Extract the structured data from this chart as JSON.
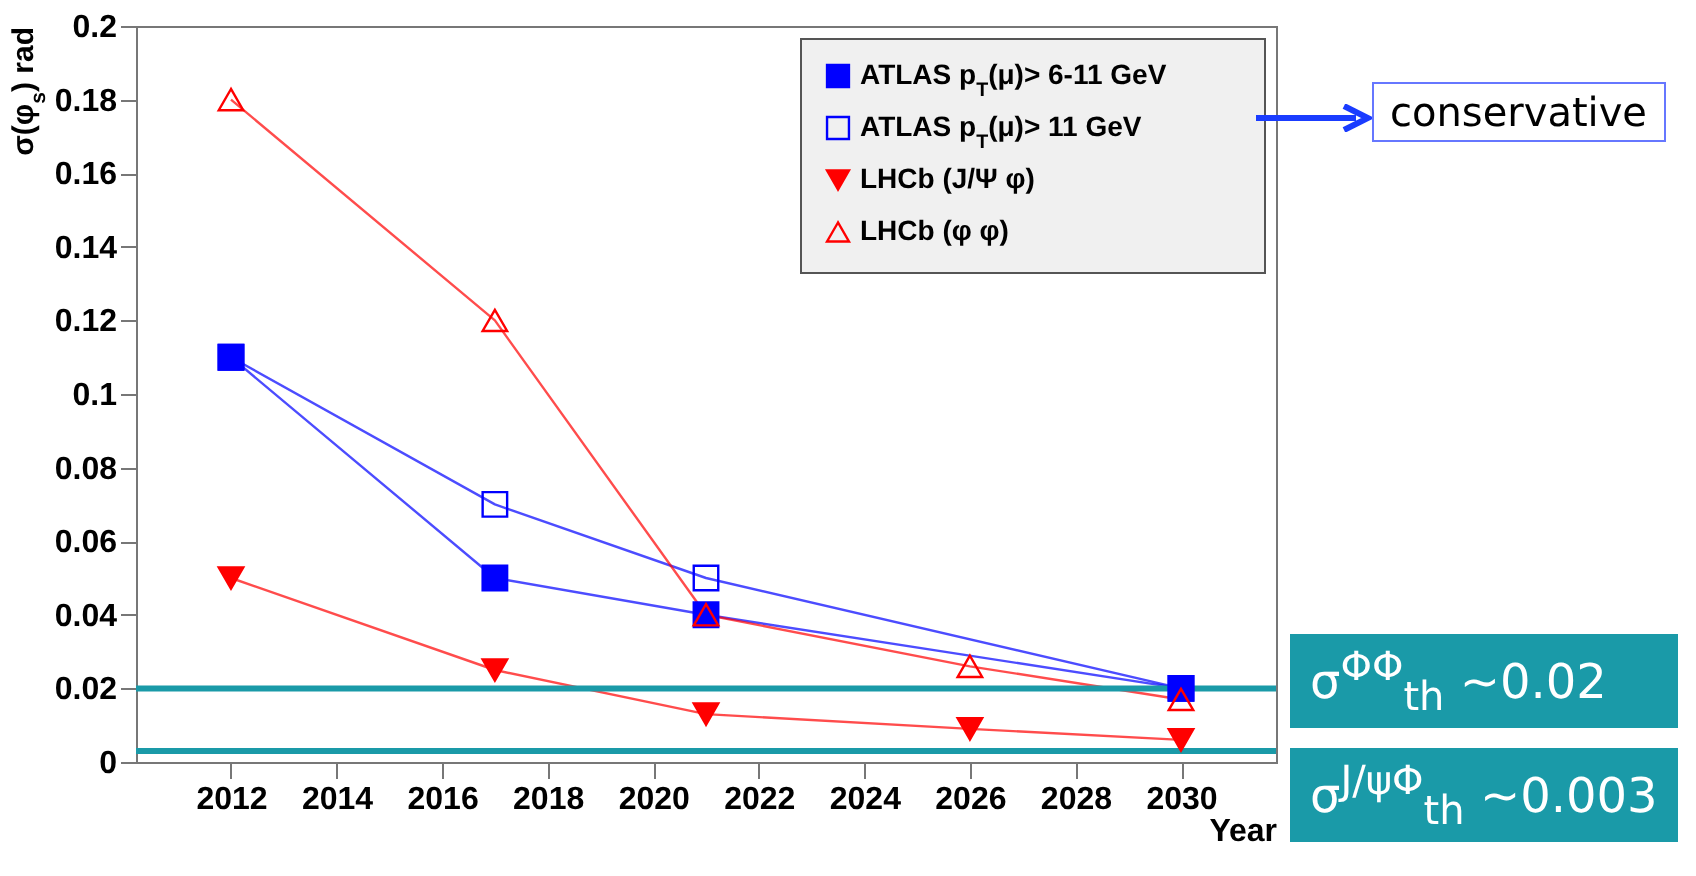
{
  "chart_data": {
    "type": "line",
    "xlabel": "Year",
    "ylabel": "σ(φ$_{s}$) rad",
    "x": [
      2012,
      2017,
      2021,
      2030
    ],
    "series": [
      {
        "name": "ATLAS p$_{T}$(μ)> 6-11 GeV",
        "color": "#0000ff",
        "marker": "square",
        "values": [
          0.11,
          0.05,
          0.04,
          0.02
        ]
      },
      {
        "name": "ATLAS p$_{T}$(μ)> 11 GeV",
        "color": "#0000ff",
        "marker": "square-open",
        "values": [
          0.11,
          0.07,
          0.05,
          0.02
        ]
      },
      {
        "name": "LHCb (J/Ψ φ)",
        "color": "#ff0000",
        "marker": "triangle-down",
        "x": [
          2012,
          2017,
          2021,
          2026,
          2030
        ],
        "values": [
          0.05,
          0.025,
          0.013,
          0.009,
          0.006
        ]
      },
      {
        "name": "LHCb (φ φ)",
        "color": "#ff0000",
        "marker": "triangle-open",
        "x": [
          2012,
          2017,
          2021,
          2026,
          2030
        ],
        "values": [
          0.18,
          0.12,
          0.04,
          0.026,
          0.017
        ]
      }
    ],
    "xlim": [
      2010.2,
      2031.8
    ],
    "xticks": [
      2012,
      2014,
      2016,
      2018,
      2020,
      2022,
      2024,
      2026,
      2028,
      2030
    ],
    "ylim": [
      0,
      0.2
    ],
    "yticks": [
      0,
      0.02,
      0.04,
      0.06,
      0.08,
      0.1,
      0.12,
      0.14,
      0.16,
      0.18,
      0.2
    ],
    "ref_lines": [
      {
        "axis": "y",
        "value": 0.02,
        "label": "σ$^{ΦΦ}$$_{th}$ ~0.02",
        "color": "#1a9aa8"
      },
      {
        "axis": "y",
        "value": 0.003,
        "label": "σ$^{J/ψΦ}$$_{th}$ ~0.003",
        "color": "#1a9aa8"
      }
    ],
    "annotations": [
      "conservative"
    ],
    "legend": "top right",
    "grid": false,
    "line_style": "solid"
  }
}
